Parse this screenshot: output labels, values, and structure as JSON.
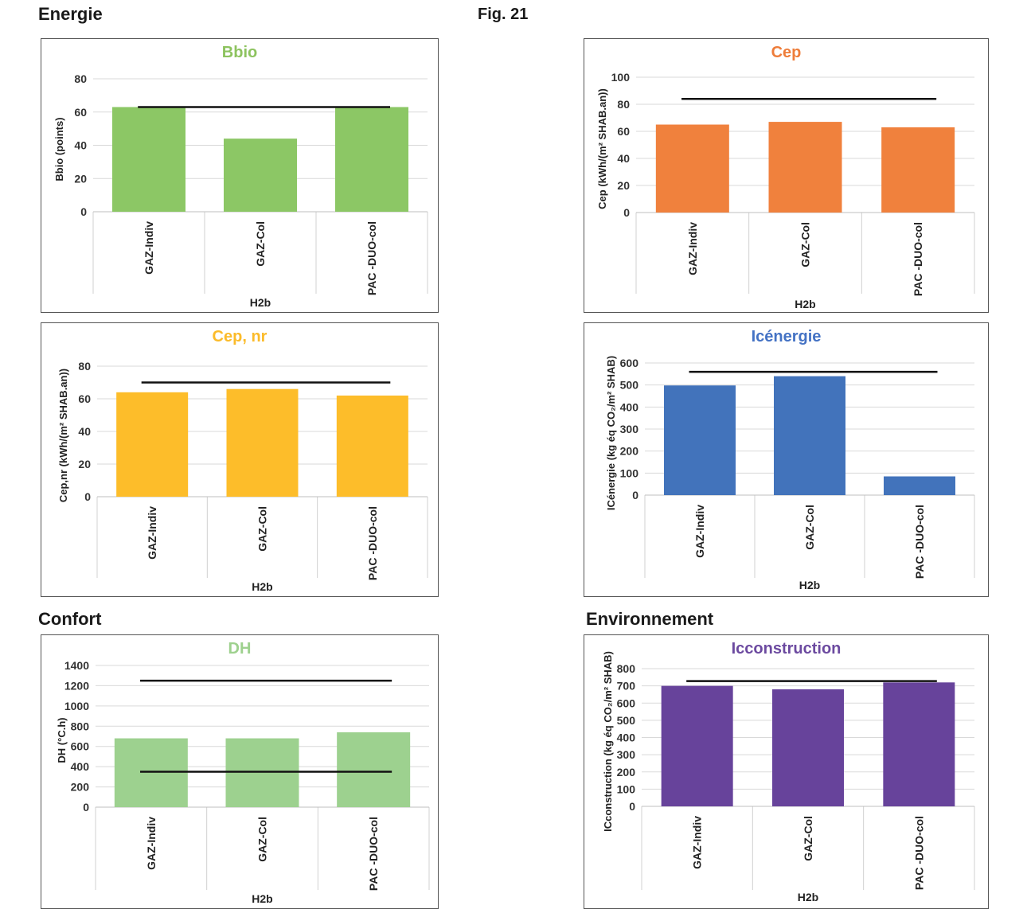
{
  "page": {
    "section_energie": "Energie",
    "section_confort": "Confort",
    "section_environnement": "Environnement",
    "fig_label": "Fig. 21"
  },
  "chart_data": [
    {
      "id": "bbio",
      "type": "bar",
      "title": "Bbio",
      "title_color": "#8dc35f",
      "bar_color": "#8cc765",
      "ylabel": "Bbio (points)",
      "group_label": "H2b",
      "categories": [
        "GAZ-Indiv",
        "GAZ-Col",
        "PAC -DUO-col"
      ],
      "values": [
        63,
        44,
        63
      ],
      "ylim": [
        0,
        80
      ],
      "yticks": [
        0,
        20,
        40,
        60,
        80
      ],
      "reference_lines": [
        63
      ],
      "grid": true
    },
    {
      "id": "cep",
      "type": "bar",
      "title": "Cep",
      "title_color": "#ee7d3a",
      "bar_color": "#f0813d",
      "ylabel": "Cep (kWh/(m² SHAB.an))",
      "group_label": "H2b",
      "categories": [
        "GAZ-Indiv",
        "GAZ-Col",
        "PAC -DUO-col"
      ],
      "values": [
        65,
        67,
        63
      ],
      "ylim": [
        0,
        100
      ],
      "yticks": [
        0,
        20,
        40,
        60,
        80,
        100
      ],
      "reference_lines": [
        84
      ],
      "grid": true
    },
    {
      "id": "cepnr",
      "type": "bar",
      "title": "Cep, nr",
      "title_color": "#fbbb2a",
      "bar_color": "#fdbd2a",
      "ylabel": "Cep,nr (kWh/(m² SHAB.an))",
      "group_label": "H2b",
      "categories": [
        "GAZ-Indiv",
        "GAZ-Col",
        "PAC -DUO-col"
      ],
      "values": [
        64,
        66,
        62
      ],
      "ylim": [
        0,
        80
      ],
      "yticks": [
        0,
        20,
        40,
        60,
        80
      ],
      "reference_lines": [
        70
      ],
      "grid": true
    },
    {
      "id": "icenergie",
      "type": "bar",
      "title": "Icénergie",
      "title_color": "#4472c4",
      "bar_color": "#4273bb",
      "ylabel": "ICénergie (kg éq CO₂/m² SHAB)",
      "group_label": "H2b",
      "categories": [
        "GAZ-Indiv",
        "GAZ-Col",
        "PAC -DUO-col"
      ],
      "values": [
        498,
        540,
        85
      ],
      "ylim": [
        0,
        600
      ],
      "yticks": [
        0,
        100,
        200,
        300,
        400,
        500,
        600
      ],
      "reference_lines": [
        560
      ],
      "grid": true
    },
    {
      "id": "dh",
      "type": "bar",
      "title": "DH",
      "title_color": "#9ed18e",
      "bar_color": "#9dd18f",
      "ylabel": "DH (°C.h)",
      "group_label": "H2b",
      "categories": [
        "GAZ-Indiv",
        "GAZ-Col",
        "PAC -DUO-col"
      ],
      "values": [
        680,
        680,
        740
      ],
      "ylim": [
        0,
        1400
      ],
      "yticks": [
        0,
        200,
        400,
        600,
        800,
        1000,
        1200,
        1400
      ],
      "reference_lines": [
        1250,
        350
      ],
      "grid": true
    },
    {
      "id": "icconstruction",
      "type": "bar",
      "title": "Icconstruction",
      "title_color": "#6c4aa0",
      "bar_color": "#67439b",
      "ylabel": "ICconstruction (kg éq CO₂/m² SHAB)",
      "group_label": "H2b",
      "categories": [
        "GAZ-Indiv",
        "GAZ-Col",
        "PAC -DUO-col"
      ],
      "values": [
        700,
        680,
        720
      ],
      "ylim": [
        0,
        800
      ],
      "yticks": [
        0,
        100,
        200,
        300,
        400,
        500,
        600,
        700,
        800
      ],
      "reference_lines": [
        728
      ],
      "grid": true
    }
  ]
}
